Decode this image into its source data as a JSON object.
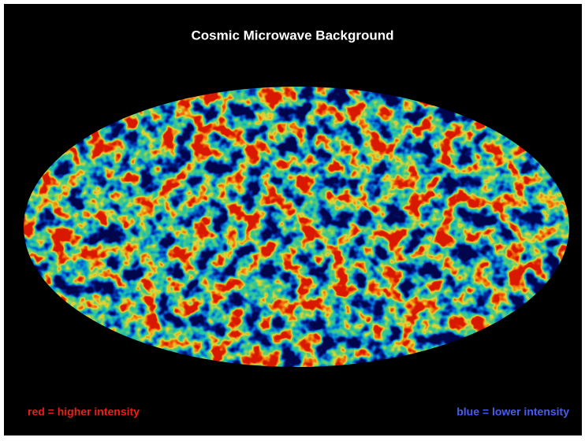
{
  "title": "Cosmic Microwave Background",
  "legend": {
    "high": "red = higher intensity",
    "low": "blue = lower intensity"
  }
}
